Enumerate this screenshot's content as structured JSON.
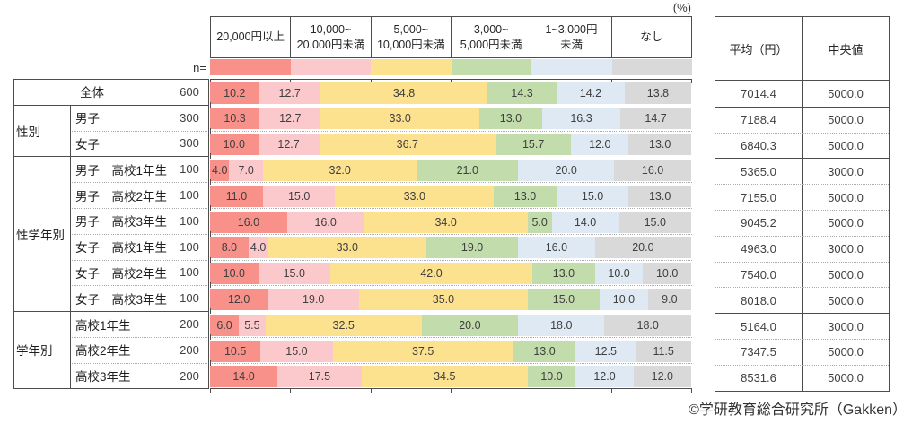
{
  "unit_label": "(%)",
  "n_label": "n=",
  "footer": {
    "copyright": "©学研教育総合研究所（Gakken）"
  },
  "stats": {
    "mean_label": "平均（円）",
    "median_label": "中央値"
  },
  "chart_data": {
    "type": "bar",
    "stacked": true,
    "orientation": "horizontal",
    "unit": "%",
    "xlim": [
      0,
      100
    ],
    "header_labels": [
      "20,000円以上",
      "10,000~\n20,000円未満",
      "5,000~\n10,000円未満",
      "3,000~\n5,000円未満",
      "1~3,000円\n未満",
      "なし"
    ],
    "series_labels": [
      "20,000円以上",
      "10,000~20,000円未満",
      "5,000~10,000円未満",
      "3,000~5,000円未満",
      "1~3,000円未満",
      "なし"
    ],
    "series_colors": [
      "#F8918A",
      "#FBC9CB",
      "#FCE18F",
      "#C2DCAC",
      "#DFE9F3",
      "#D9D9D9"
    ],
    "stats_columns": [
      "平均（円）",
      "中央値"
    ],
    "groups": [
      {
        "label": "",
        "merged": true,
        "rows": [
          {
            "label": "全体",
            "n": 600,
            "values": [
              10.2,
              12.7,
              34.8,
              14.3,
              14.2,
              13.8
            ],
            "mean": 7014.4,
            "median": 5000.0
          }
        ]
      },
      {
        "label": "性別",
        "merged": false,
        "rows": [
          {
            "label": "男子",
            "n": 300,
            "values": [
              10.3,
              12.7,
              33.0,
              13.0,
              16.3,
              14.7
            ],
            "mean": 7188.4,
            "median": 5000.0
          },
          {
            "label": "女子",
            "n": 300,
            "values": [
              10.0,
              12.7,
              36.7,
              15.7,
              12.0,
              13.0
            ],
            "mean": 6840.3,
            "median": 5000.0
          }
        ]
      },
      {
        "label": "性学年別",
        "merged": false,
        "rows": [
          {
            "label": "男子　高校1年生",
            "n": 100,
            "values": [
              4.0,
              7.0,
              32.0,
              21.0,
              20.0,
              16.0
            ],
            "mean": 5365.0,
            "median": 3000.0
          },
          {
            "label": "男子　高校2年生",
            "n": 100,
            "values": [
              11.0,
              15.0,
              33.0,
              13.0,
              15.0,
              13.0
            ],
            "mean": 7155.0,
            "median": 5000.0
          },
          {
            "label": "男子　高校3年生",
            "n": 100,
            "values": [
              16.0,
              16.0,
              34.0,
              5.0,
              14.0,
              15.0
            ],
            "mean": 9045.2,
            "median": 5000.0
          },
          {
            "label": "女子　高校1年生",
            "n": 100,
            "values": [
              8.0,
              4.0,
              33.0,
              19.0,
              16.0,
              20.0
            ],
            "mean": 4963.0,
            "median": 3000.0
          },
          {
            "label": "女子　高校2年生",
            "n": 100,
            "values": [
              10.0,
              15.0,
              42.0,
              13.0,
              10.0,
              10.0
            ],
            "mean": 7540.0,
            "median": 5000.0
          },
          {
            "label": "女子　高校3年生",
            "n": 100,
            "values": [
              12.0,
              19.0,
              35.0,
              15.0,
              10.0,
              9.0
            ],
            "mean": 8018.0,
            "median": 5000.0
          }
        ]
      },
      {
        "label": "学年別",
        "merged": false,
        "rows": [
          {
            "label": "高校1年生",
            "n": 200,
            "values": [
              6.0,
              5.5,
              32.5,
              20.0,
              18.0,
              18.0
            ],
            "mean": 5164.0,
            "median": 3000.0
          },
          {
            "label": "高校2年生",
            "n": 200,
            "values": [
              10.5,
              15.0,
              37.5,
              13.0,
              12.5,
              11.5
            ],
            "mean": 7347.5,
            "median": 5000.0
          },
          {
            "label": "高校3年生",
            "n": 200,
            "values": [
              14.0,
              17.5,
              34.5,
              10.0,
              12.0,
              12.0
            ],
            "mean": 8531.6,
            "median": 5000.0
          }
        ]
      }
    ]
  }
}
